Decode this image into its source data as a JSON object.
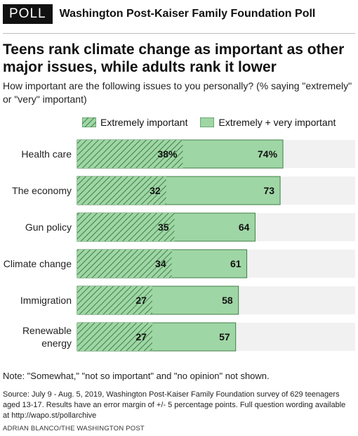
{
  "header": {
    "badge": "POLL",
    "poll_name": "Washington Post-Kaiser Family Foundation Poll"
  },
  "headline": "Teens rank climate change as important as other major issues, while adults rank it lower",
  "subtitle": "How important are the following issues to you personally? (% saying \"extremely\" or \"very\" important)",
  "note": "Note: \"Somewhat,\" \"not so important\" and \"no opinion\" not shown.",
  "source": "Source: July 9 - Aug. 5, 2019, Washington Post-Kaiser Family Foundation survey of 629 teenagers aged 13-17. Results have an error margin of +/- 5 percentage points. Full question wording available at http://wapo.st/pollarchive",
  "credit": "ADRIAN BLANCO/THE WASHINGTON POST",
  "colors": {
    "fill": "#9fd6a5",
    "border": "#3f7f46",
    "hatch": "#3f7f46",
    "track": "#f1f1f1"
  },
  "chart_data": {
    "type": "bar",
    "orientation": "horizontal",
    "stacking": "overlay",
    "xlim": [
      0,
      100
    ],
    "categories": [
      [
        "Health care"
      ],
      [
        "The economy"
      ],
      [
        "Gun policy"
      ],
      [
        "Climate change"
      ],
      [
        "Immigration"
      ],
      [
        "Renewable",
        "energy"
      ]
    ],
    "series": [
      {
        "name": "Extremely important",
        "pattern": "hatched",
        "values": [
          38,
          32,
          35,
          34,
          27,
          27
        ],
        "labels": [
          "38%",
          "32",
          "35",
          "34",
          "27",
          "27"
        ]
      },
      {
        "name": "Extremely + very important",
        "pattern": "solid",
        "values": [
          74,
          73,
          64,
          61,
          58,
          57
        ],
        "labels": [
          "74%",
          "73",
          "64",
          "61",
          "58",
          "57"
        ]
      }
    ],
    "legend_position": "top"
  }
}
